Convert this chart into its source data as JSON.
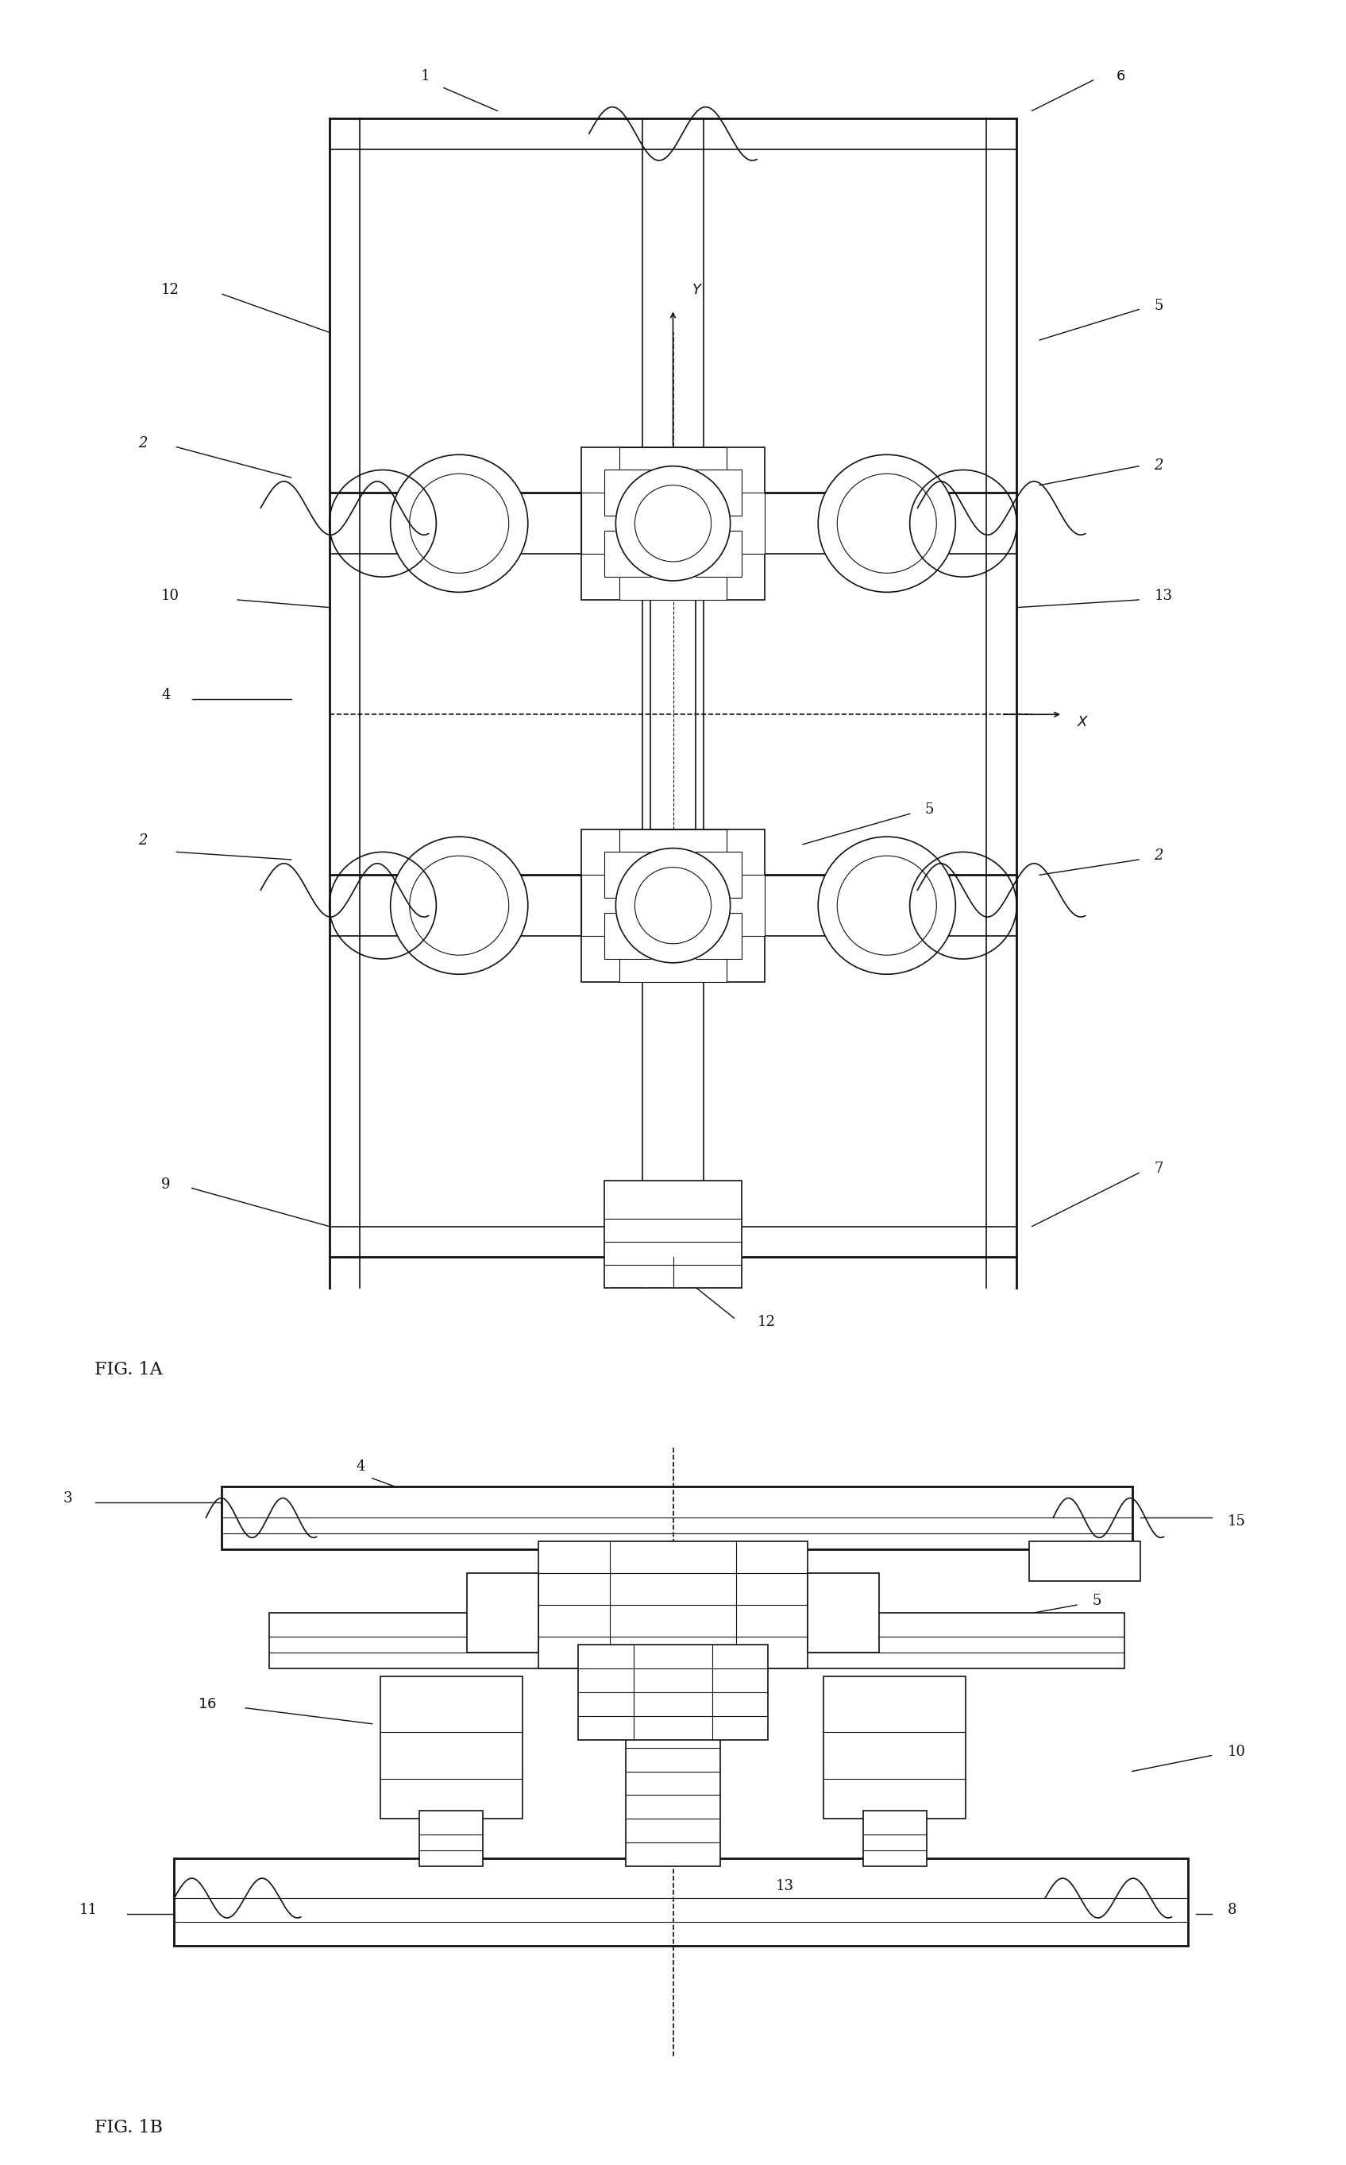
{
  "bg_color": "#ffffff",
  "line_color": "#111111",
  "fig_width": 16.95,
  "fig_height": 27.25,
  "fig1a_label": "FIG. 1A",
  "fig1b_label": "FIG. 1B"
}
